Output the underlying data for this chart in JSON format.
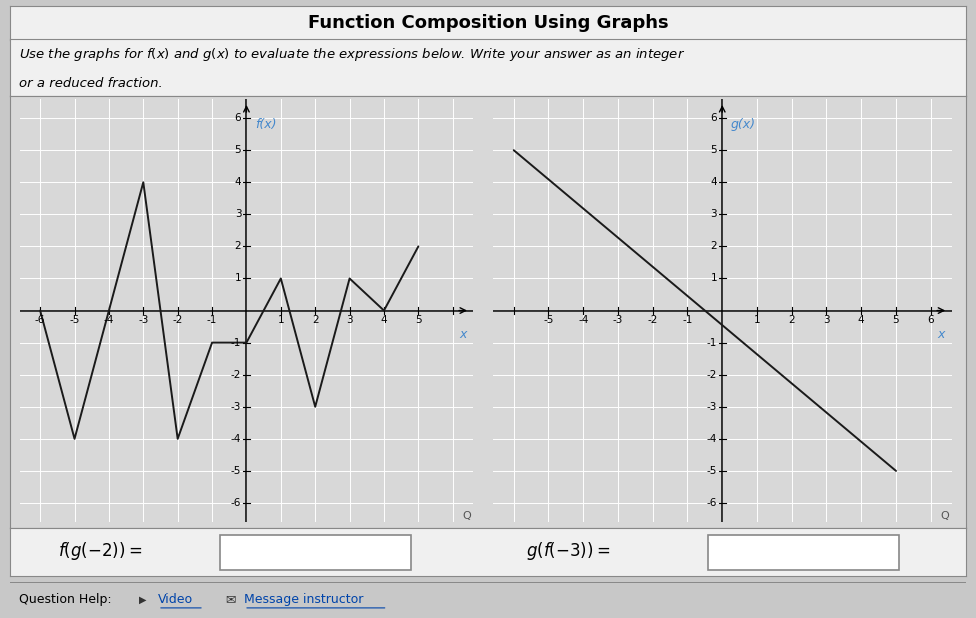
{
  "title": "Function Composition Using Graphs",
  "subtitle_line1": "Use the graphs for f(x) and g(x) to evaluate the expressions below. Write your answer as an integer",
  "subtitle_line2": "or a reduced fraction.",
  "f_points": [
    [
      -6,
      0
    ],
    [
      -5,
      -4
    ],
    [
      -3,
      4
    ],
    [
      -2,
      -4
    ],
    [
      -1,
      -1
    ],
    [
      0,
      -1
    ],
    [
      1,
      1
    ],
    [
      2,
      -3
    ],
    [
      3,
      1
    ],
    [
      4,
      0
    ],
    [
      5,
      2
    ]
  ],
  "g_points": [
    [
      -6,
      5
    ],
    [
      5,
      -5
    ]
  ],
  "f_label": "f(x)",
  "g_label": "g(x)",
  "x_label": "x",
  "expr1_latex": "$f(g(-2)) =$",
  "expr2_latex": "$g(f(-3)) =$",
  "axis_min": -6,
  "axis_max": 6,
  "outer_bg": "#c8c8c8",
  "panel_bg": "#f0f0f0",
  "graph_bg": "#d8d8d8",
  "line_color": "#1a1a1a",
  "label_color": "#4488cc",
  "grid_color": "#ffffff",
  "axis_color": "#000000",
  "box_color": "#ffffff",
  "help_text": "Question Help:",
  "video_text": "Video",
  "msg_text": "Message instructor"
}
